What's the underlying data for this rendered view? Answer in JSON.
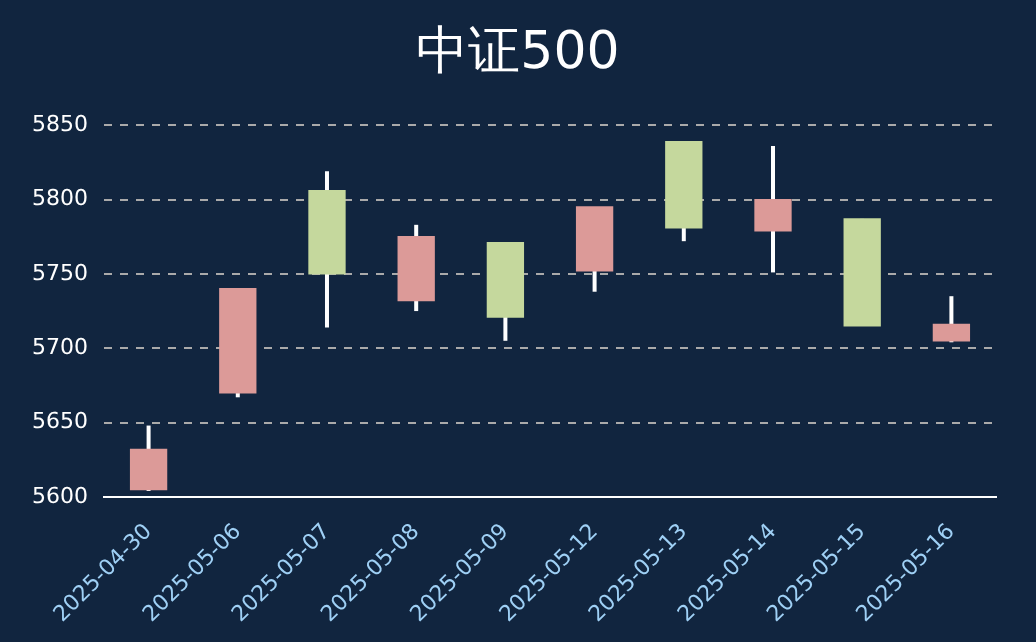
{
  "chart_data": {
    "type": "candlestick",
    "title": "中证500",
    "categories": [
      "2025-04-30",
      "2025-05-06",
      "2025-05-07",
      "2025-05-08",
      "2025-05-09",
      "2025-05-12",
      "2025-05-13",
      "2025-05-14",
      "2025-05-15",
      "2025-05-16"
    ],
    "ohlc": [
      [
        5605,
        5648,
        5604,
        5632
      ],
      [
        5670,
        5740,
        5667,
        5740
      ],
      [
        5806,
        5819,
        5714,
        5750
      ],
      [
        5732,
        5783,
        5725,
        5775
      ],
      [
        5771,
        5771,
        5705,
        5721
      ],
      [
        5752,
        5795,
        5738,
        5795
      ],
      [
        5839,
        5839,
        5772,
        5781
      ],
      [
        5779,
        5836,
        5751,
        5800
      ],
      [
        5787,
        5787,
        5715,
        5715
      ],
      [
        5705,
        5735,
        5704,
        5716
      ]
    ],
    "colors": [
      "#dc9a98",
      "#dc9a98",
      "#c5d89d",
      "#dc9a98",
      "#c5d89d",
      "#dc9a98",
      "#c5d89d",
      "#dc9a98",
      "#c5d89d",
      "#dc9a98"
    ],
    "ylim": [
      5600,
      5850
    ],
    "yticks": [
      5600,
      5650,
      5700,
      5750,
      5800,
      5850
    ],
    "grid": "y",
    "legend": false
  }
}
